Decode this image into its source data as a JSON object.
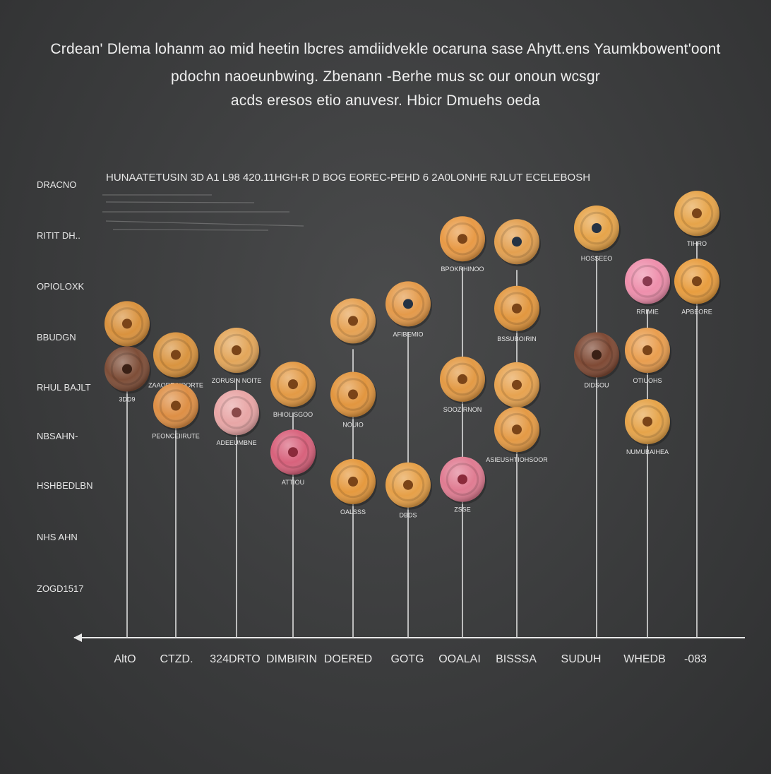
{
  "intro_lines": [
    "Crdean' Dlema lohanm ao mid heetin lbcres amdiidvekle ocaruna sase Ahytt.ens Yaumkbowent'oont",
    "pdochn naoeunbwing. Zbenann -Berhe mus sc our onoun wcsgr",
    "acds eresos etio anuvesr. Hbicr Dmuehs oeda"
  ],
  "chart_data": {
    "type": "scatter",
    "title": "HUNAATETUSIN 3D A1 L98 420.11HGH-R D BOG EOREC-PEHD 6 2A0LONHE RJLUT ECELEBOSH",
    "y_tick_labels": [
      "DRACNO",
      "RITIT DH..",
      "OPIOLOXK",
      "BBUDGN",
      "RHUL BAJLT",
      "NBSAHN-",
      "HSHBEDLBN",
      "NHS AHN",
      "ZOGD1517"
    ],
    "x_tick_labels": [
      "AltO",
      "CTZD.",
      "324DRTO",
      "DIMBIRIN",
      "DOERED",
      "GOTG",
      "OOALAI",
      "BISSSA",
      "SUDUH",
      "WHEDB",
      "-083"
    ],
    "y_range": [
      0,
      9
    ],
    "points": [
      {
        "x": 1,
        "y": 5.55,
        "color": "#d9923e",
        "hole": "#7a4418"
      },
      {
        "x": 1,
        "y": 4.75,
        "color": "#7e4e38",
        "hole": "#3a2015",
        "label": "3DD9"
      },
      {
        "x": 2,
        "y": 5.0,
        "color": "#d99440",
        "hole": "#7a4418",
        "label": "ZAAORE NOORTE"
      },
      {
        "x": 2,
        "y": 4.1,
        "color": "#de8f45",
        "hole": "#7a4418",
        "label": "PEONCEIIRUTE"
      },
      {
        "x": 3,
        "y": 5.08,
        "color": "#e3a65a",
        "hole": "#7a4418",
        "label": "ZORUSIN NOITE"
      },
      {
        "x": 3,
        "y": 3.98,
        "color": "#e8a6a6",
        "hole": "#8a4a4a",
        "label": "ADEEUMBNE"
      },
      {
        "x": 4,
        "y": 4.48,
        "color": "#e39a45",
        "hole": "#7a4418",
        "label": "BHIOL SGOO"
      },
      {
        "x": 4,
        "y": 3.28,
        "color": "#d8627c",
        "hole": "#8a2a3a",
        "label": "ATTIOU"
      },
      {
        "x": 5,
        "y": 5.6,
        "color": "#e6a253",
        "hole": "#7a4418"
      },
      {
        "x": 5,
        "y": 4.3,
        "color": "#e2963f",
        "hole": "#7a4418",
        "label": "NOUIO"
      },
      {
        "x": 5,
        "y": 2.76,
        "color": "#e5993e",
        "hole": "#7a4418",
        "label": "OALSSS"
      },
      {
        "x": 6,
        "y": 5.9,
        "color": "#e49a4a",
        "hole": "#243244",
        "label": "AFIBEMIO"
      },
      {
        "x": 6,
        "y": 2.7,
        "color": "#e6a048",
        "hole": "#7a4418",
        "label": "DBDS"
      },
      {
        "x": 7,
        "y": 7.05,
        "color": "#e89a46",
        "hole": "#7a4418",
        "label": "BPOKRHINOO"
      },
      {
        "x": 7,
        "y": 4.57,
        "color": "#e39a45",
        "hole": "#7a4418",
        "label": "SOOZIRNON"
      },
      {
        "x": 7,
        "y": 2.8,
        "color": "#e07c92",
        "hole": "#8a2a3a",
        "label": "ZSSE"
      },
      {
        "x": 8,
        "y": 7.0,
        "color": "#e3a050",
        "hole": "#243244"
      },
      {
        "x": 8,
        "y": 5.82,
        "color": "#e2973f",
        "hole": "#7a4418",
        "label": "BSSUBOIRIN"
      },
      {
        "x": 8,
        "y": 4.47,
        "color": "#e7a350",
        "hole": "#7a4418"
      },
      {
        "x": 8,
        "y": 3.68,
        "color": "#e49a45",
        "hole": "#7a4418",
        "label": "ASIEUSHTIOHSOOR"
      },
      {
        "x": 9,
        "y": 7.24,
        "color": "#e6a44a",
        "hole": "#243244",
        "label": "HOSSEEO"
      },
      {
        "x": 9,
        "y": 5.0,
        "color": "#7f4a35",
        "hole": "#3a2015",
        "label": "DIDSOU"
      },
      {
        "x": 10,
        "y": 6.3,
        "color": "#ee8fac",
        "hole": "#8a3a50",
        "label": "RRIMIE"
      },
      {
        "x": 10,
        "y": 5.08,
        "color": "#e99e4f",
        "hole": "#7a4418",
        "label": "OTIUOHS"
      },
      {
        "x": 10,
        "y": 3.82,
        "color": "#e6a44a",
        "hole": "#7a4418",
        "label": "NUMUBAIHEA"
      },
      {
        "x": 11,
        "y": 7.5,
        "color": "#e6a44a",
        "hole": "#7a4418",
        "label": "TIHRO"
      },
      {
        "x": 11,
        "y": 6.3,
        "color": "#e89d3f",
        "hole": "#7a4418",
        "label": "APBEORE"
      }
    ],
    "grid": false,
    "legend": "none"
  }
}
